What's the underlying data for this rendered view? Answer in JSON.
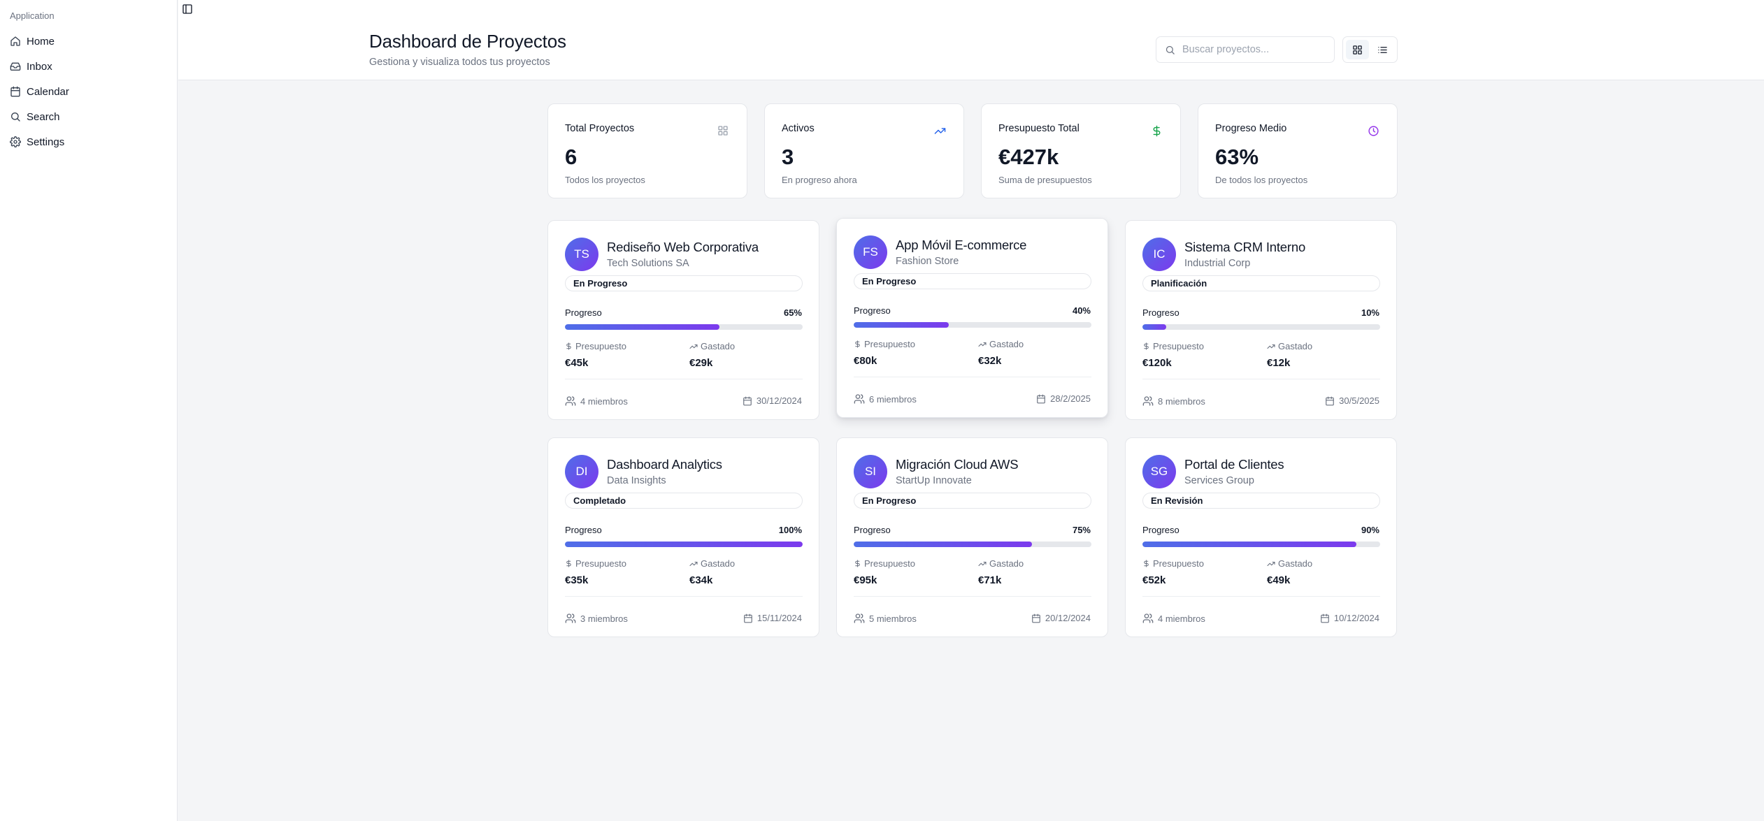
{
  "sidebar": {
    "group_label": "Application",
    "items": [
      {
        "label": "Home",
        "icon": "home-icon"
      },
      {
        "label": "Inbox",
        "icon": "inbox-icon"
      },
      {
        "label": "Calendar",
        "icon": "calendar-icon"
      },
      {
        "label": "Search",
        "icon": "search-icon"
      },
      {
        "label": "Settings",
        "icon": "settings-icon"
      }
    ]
  },
  "header": {
    "title": "Dashboard de Proyectos",
    "subtitle": "Gestiona y visualiza todos tus proyectos",
    "search_placeholder": "Buscar proyectos...",
    "search_value": "",
    "view_mode": "grid"
  },
  "stats": [
    {
      "label": "Total Proyectos",
      "value": "6",
      "desc": "Todos los proyectos",
      "icon": "grid-icon",
      "color": "#9ca3af"
    },
    {
      "label": "Activos",
      "value": "3",
      "desc": "En progreso ahora",
      "icon": "trending-up-icon",
      "color": "#2563eb"
    },
    {
      "label": "Presupuesto Total",
      "value": "€427k",
      "desc": "Suma de presupuestos",
      "icon": "dollar-icon",
      "color": "#16a34a"
    },
    {
      "label": "Progreso Medio",
      "value": "63%",
      "desc": "De todos los proyectos",
      "icon": "clock-icon",
      "color": "#9333ea"
    }
  ],
  "labels": {
    "progress": "Progreso",
    "budget": "Presupuesto",
    "spent": "Gastado"
  },
  "projects": [
    {
      "initials": "TS",
      "title": "Rediseño Web Corporativa",
      "client": "Tech Solutions SA",
      "status": "En Progreso",
      "progress": 65,
      "progress_text": "65%",
      "budget": "€45k",
      "spent": "€29k",
      "members": "4 miembros",
      "date": "30/12/2024"
    },
    {
      "initials": "FS",
      "title": "App Móvil E-commerce",
      "client": "Fashion Store",
      "status": "En Progreso",
      "progress": 40,
      "progress_text": "40%",
      "budget": "€80k",
      "spent": "€32k",
      "members": "6 miembros",
      "date": "28/2/2025"
    },
    {
      "initials": "IC",
      "title": "Sistema CRM Interno",
      "client": "Industrial Corp",
      "status": "Planificación",
      "progress": 10,
      "progress_text": "10%",
      "budget": "€120k",
      "spent": "€12k",
      "members": "8 miembros",
      "date": "30/5/2025"
    },
    {
      "initials": "DI",
      "title": "Dashboard Analytics",
      "client": "Data Insights",
      "status": "Completado",
      "progress": 100,
      "progress_text": "100%",
      "budget": "€35k",
      "spent": "€34k",
      "members": "3 miembros",
      "date": "15/11/2024"
    },
    {
      "initials": "SI",
      "title": "Migración Cloud AWS",
      "client": "StartUp Innovate",
      "status": "En Progreso",
      "progress": 75,
      "progress_text": "75%",
      "budget": "€95k",
      "spent": "€71k",
      "members": "5 miembros",
      "date": "20/12/2024"
    },
    {
      "initials": "SG",
      "title": "Portal de Clientes",
      "client": "Services Group",
      "status": "En Revisión",
      "progress": 90,
      "progress_text": "90%",
      "budget": "€52k",
      "spent": "€49k",
      "members": "4 miembros",
      "date": "10/12/2024"
    }
  ],
  "colors": {
    "accent_start": "#4f6ee8",
    "accent_end": "#7c3aed"
  }
}
